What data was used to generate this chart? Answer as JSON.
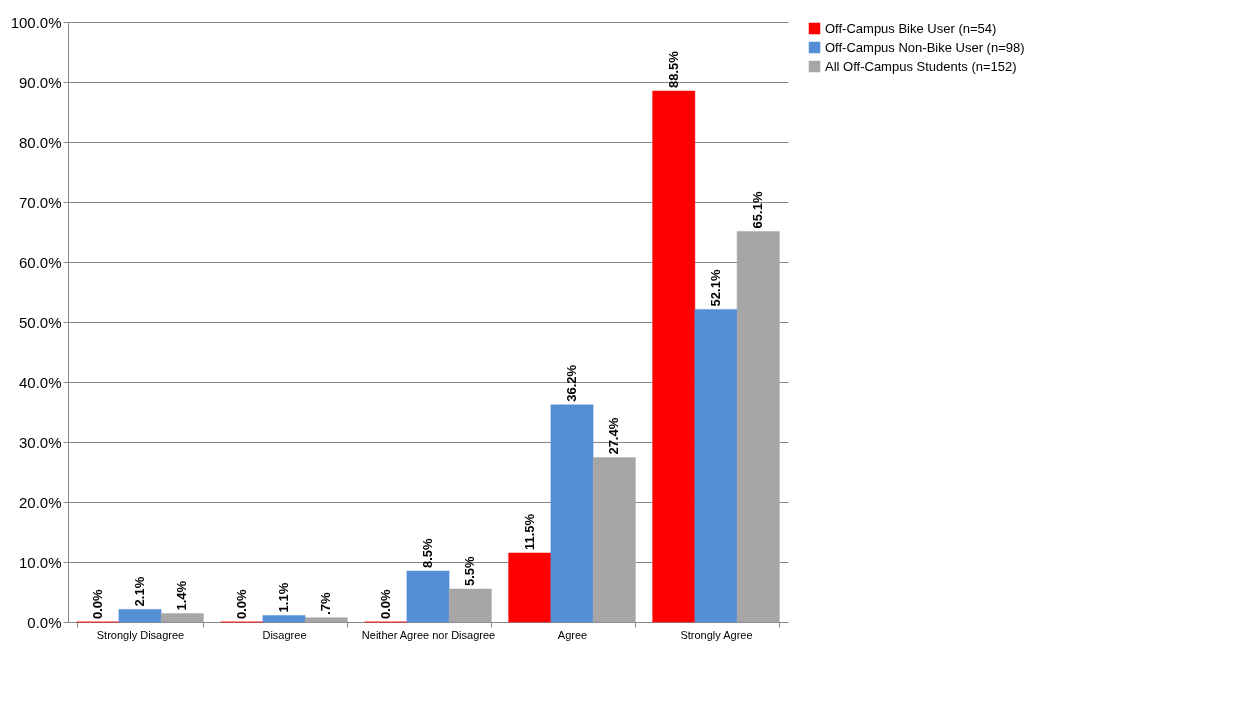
{
  "chart_data": {
    "type": "bar",
    "categories": [
      "Strongly Disagree",
      "Disagree",
      "Neither Agree nor Disagree",
      "Agree",
      "Strongly Agree"
    ],
    "series": [
      {
        "name": "Off-Campus Bike User (n=54)",
        "color": "#ff0000",
        "values": [
          0.0,
          0.0,
          0.0,
          11.5,
          88.5
        ],
        "value_labels": [
          "0.0%",
          "0.0%",
          "0.0%",
          "11.5%",
          "88.5%"
        ]
      },
      {
        "name": "Off-Campus Non-Bike User (n=98)",
        "color": "#558ed5",
        "values": [
          2.1,
          1.1,
          8.5,
          36.2,
          52.1
        ],
        "value_labels": [
          "2.1%",
          "1.1%",
          "8.5%",
          "36.2%",
          "52.1%"
        ]
      },
      {
        "name": "All Off-Campus Students (n=152)",
        "color": "#a6a6a6",
        "values": [
          1.4,
          0.7,
          5.5,
          27.4,
          65.1
        ],
        "value_labels": [
          "1.4%",
          ".7%",
          "5.5%",
          "27.4%",
          "65.1%"
        ]
      }
    ],
    "ylim": [
      0,
      100
    ],
    "yticks": [
      {
        "value": 0,
        "label": "0.0%"
      },
      {
        "value": 10,
        "label": "10.0%"
      },
      {
        "value": 20,
        "label": "20.0%"
      },
      {
        "value": 30,
        "label": "30.0%"
      },
      {
        "value": 40,
        "label": "40.0%"
      },
      {
        "value": 50,
        "label": "50.0%"
      },
      {
        "value": 60,
        "label": "60.0%"
      },
      {
        "value": 70,
        "label": "70.0%"
      },
      {
        "value": 80,
        "label": "80.0%"
      },
      {
        "value": 90,
        "label": "90.0%"
      },
      {
        "value": 100,
        "label": "100.0%"
      }
    ],
    "grid": "y",
    "legend": "right"
  }
}
